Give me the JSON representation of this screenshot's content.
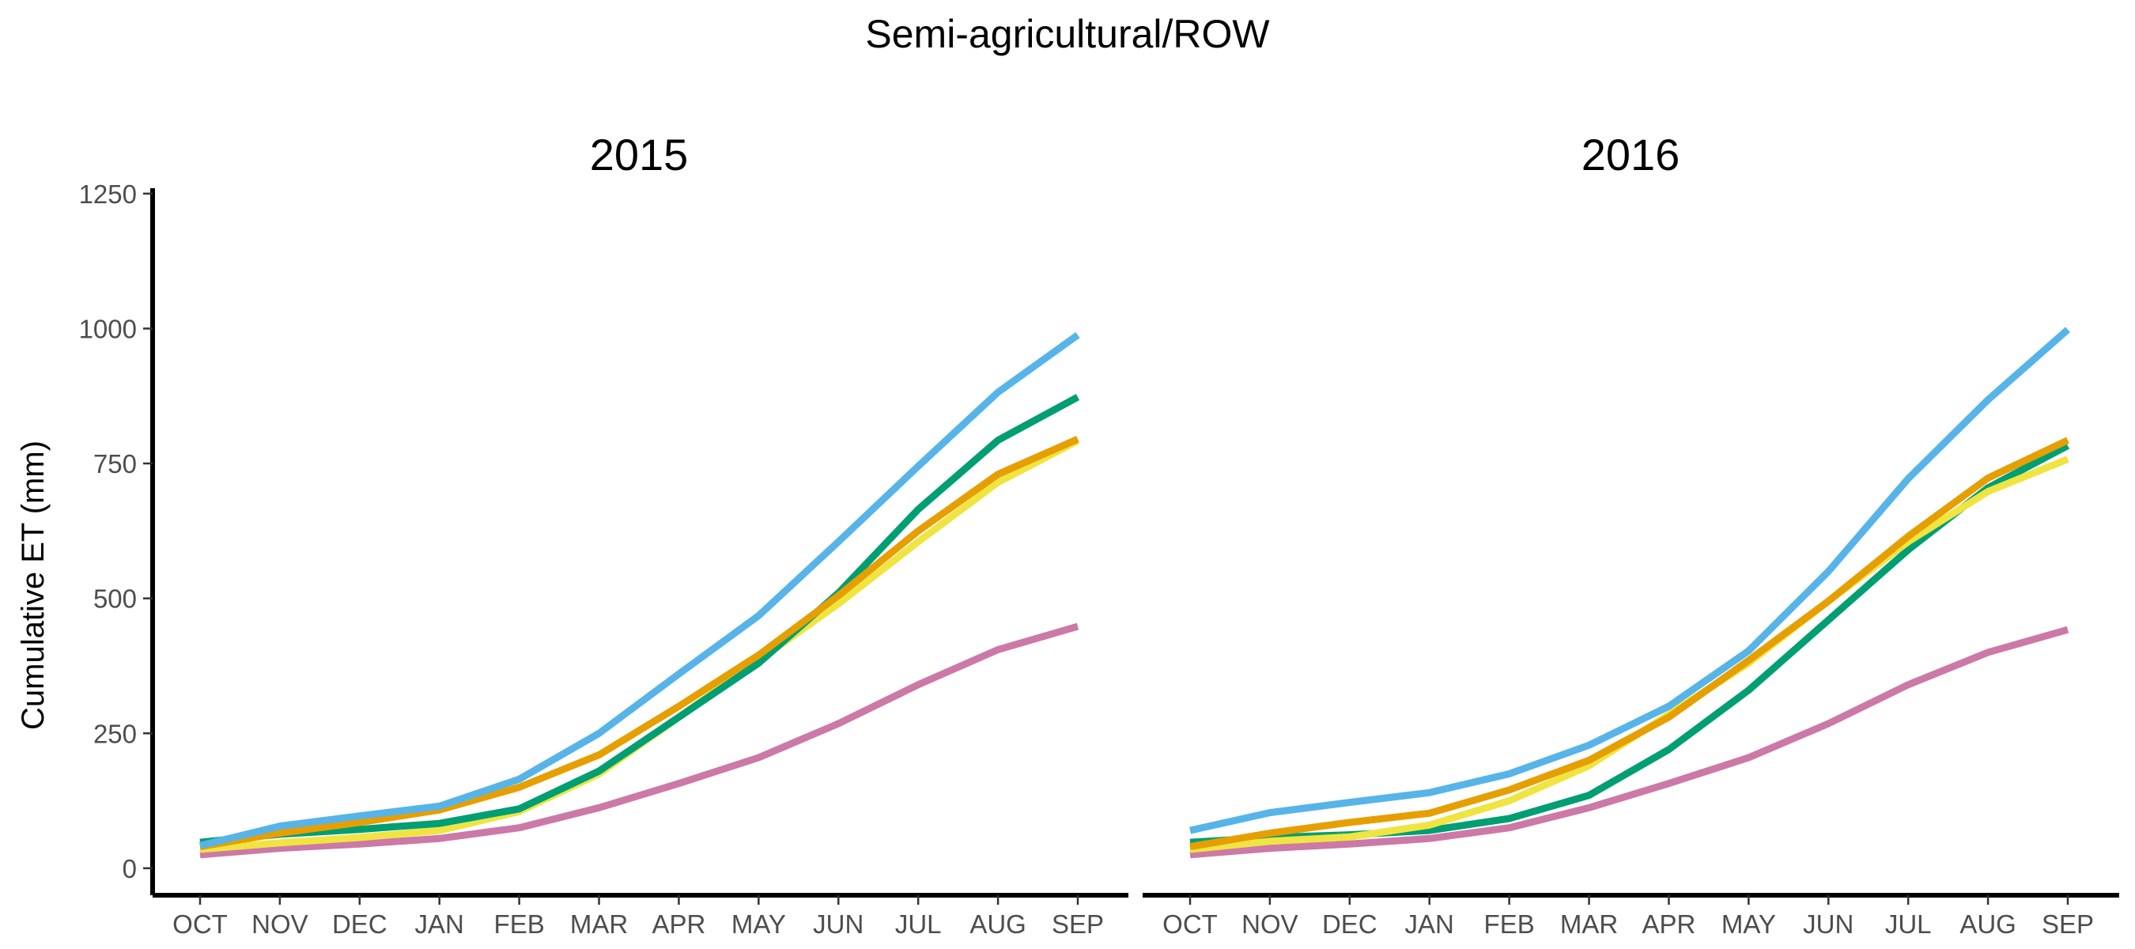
{
  "title": "Semi-agricultural/ROW",
  "colors": {
    "blue": "#56b4e9",
    "green": "#009e73",
    "orange": "#e69f00",
    "yellow": "#f0e442",
    "pink": "#cc79a7"
  },
  "chart_data": [
    {
      "type": "line",
      "title": "2015",
      "xlabel": "",
      "ylabel": "Cumulative ET (mm)",
      "categories": [
        "OCT",
        "NOV",
        "DEC",
        "JAN",
        "FEB",
        "MAR",
        "APR",
        "MAY",
        "JUN",
        "JUL",
        "AUG",
        "SEP"
      ],
      "ylim": [
        -50,
        1260
      ],
      "yticks": [
        0,
        250,
        500,
        750,
        1000,
        1250
      ],
      "grid": false,
      "series": [
        {
          "color": "#cc79a7",
          "values": [
            25,
            37,
            45,
            55,
            75,
            112,
            157,
            205,
            268,
            340,
            405,
            448
          ]
        },
        {
          "color": "#f0e442",
          "values": [
            35,
            47,
            57,
            70,
            105,
            175,
            280,
            385,
            490,
            605,
            715,
            792
          ]
        },
        {
          "color": "#009e73",
          "values": [
            48,
            63,
            72,
            83,
            110,
            180,
            280,
            380,
            510,
            665,
            793,
            873
          ]
        },
        {
          "color": "#e69f00",
          "values": [
            40,
            65,
            85,
            108,
            150,
            210,
            300,
            395,
            505,
            625,
            730,
            795
          ]
        },
        {
          "color": "#56b4e9",
          "values": [
            42,
            78,
            97,
            115,
            165,
            250,
            360,
            468,
            605,
            745,
            882,
            988
          ]
        }
      ]
    },
    {
      "type": "line",
      "title": "2016",
      "xlabel": "",
      "ylabel": "",
      "categories": [
        "OCT",
        "NOV",
        "DEC",
        "JAN",
        "FEB",
        "MAR",
        "APR",
        "MAY",
        "JUN",
        "JUL",
        "AUG",
        "SEP"
      ],
      "ylim": [
        -50,
        1260
      ],
      "yticks": [
        0,
        250,
        500,
        750,
        1000,
        1250
      ],
      "grid": false,
      "series": [
        {
          "color": "#cc79a7",
          "values": [
            25,
            37,
            45,
            55,
            75,
            112,
            157,
            205,
            268,
            340,
            400,
            442
          ]
        },
        {
          "color": "#009e73",
          "values": [
            48,
            57,
            62,
            70,
            92,
            135,
            220,
            330,
            460,
            590,
            705,
            783
          ]
        },
        {
          "color": "#f0e442",
          "values": [
            35,
            50,
            58,
            80,
            125,
            190,
            285,
            380,
            495,
            605,
            698,
            758
          ]
        },
        {
          "color": "#e69f00",
          "values": [
            40,
            65,
            85,
            102,
            145,
            200,
            280,
            385,
            495,
            615,
            723,
            793
          ]
        },
        {
          "color": "#56b4e9",
          "values": [
            70,
            103,
            122,
            140,
            175,
            228,
            300,
            403,
            550,
            722,
            868,
            998
          ]
        }
      ]
    }
  ]
}
